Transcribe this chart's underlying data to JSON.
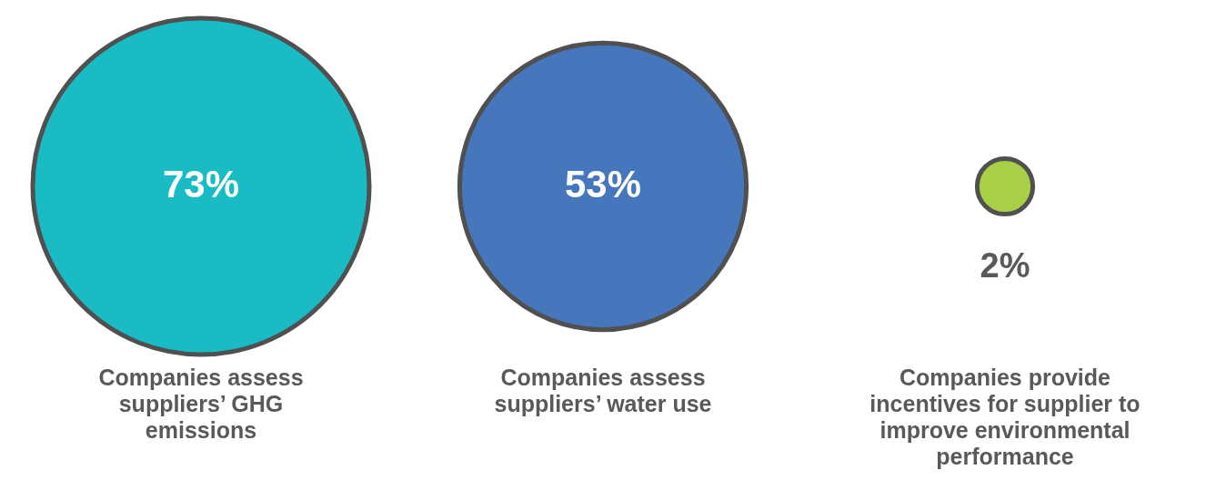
{
  "chart_data": {
    "type": "other",
    "categories": [
      "Companies assess suppliers’ GHG emissions",
      "Companies assess suppliers’ water use",
      "Companies provide incentives for supplier to improve environmental performance"
    ],
    "values": [
      73,
      53,
      2
    ],
    "colors": [
      "#19bcc4",
      "#4677bd",
      "#a8cf45"
    ],
    "value_labels": [
      "73%",
      "53%",
      "2%"
    ]
  }
}
